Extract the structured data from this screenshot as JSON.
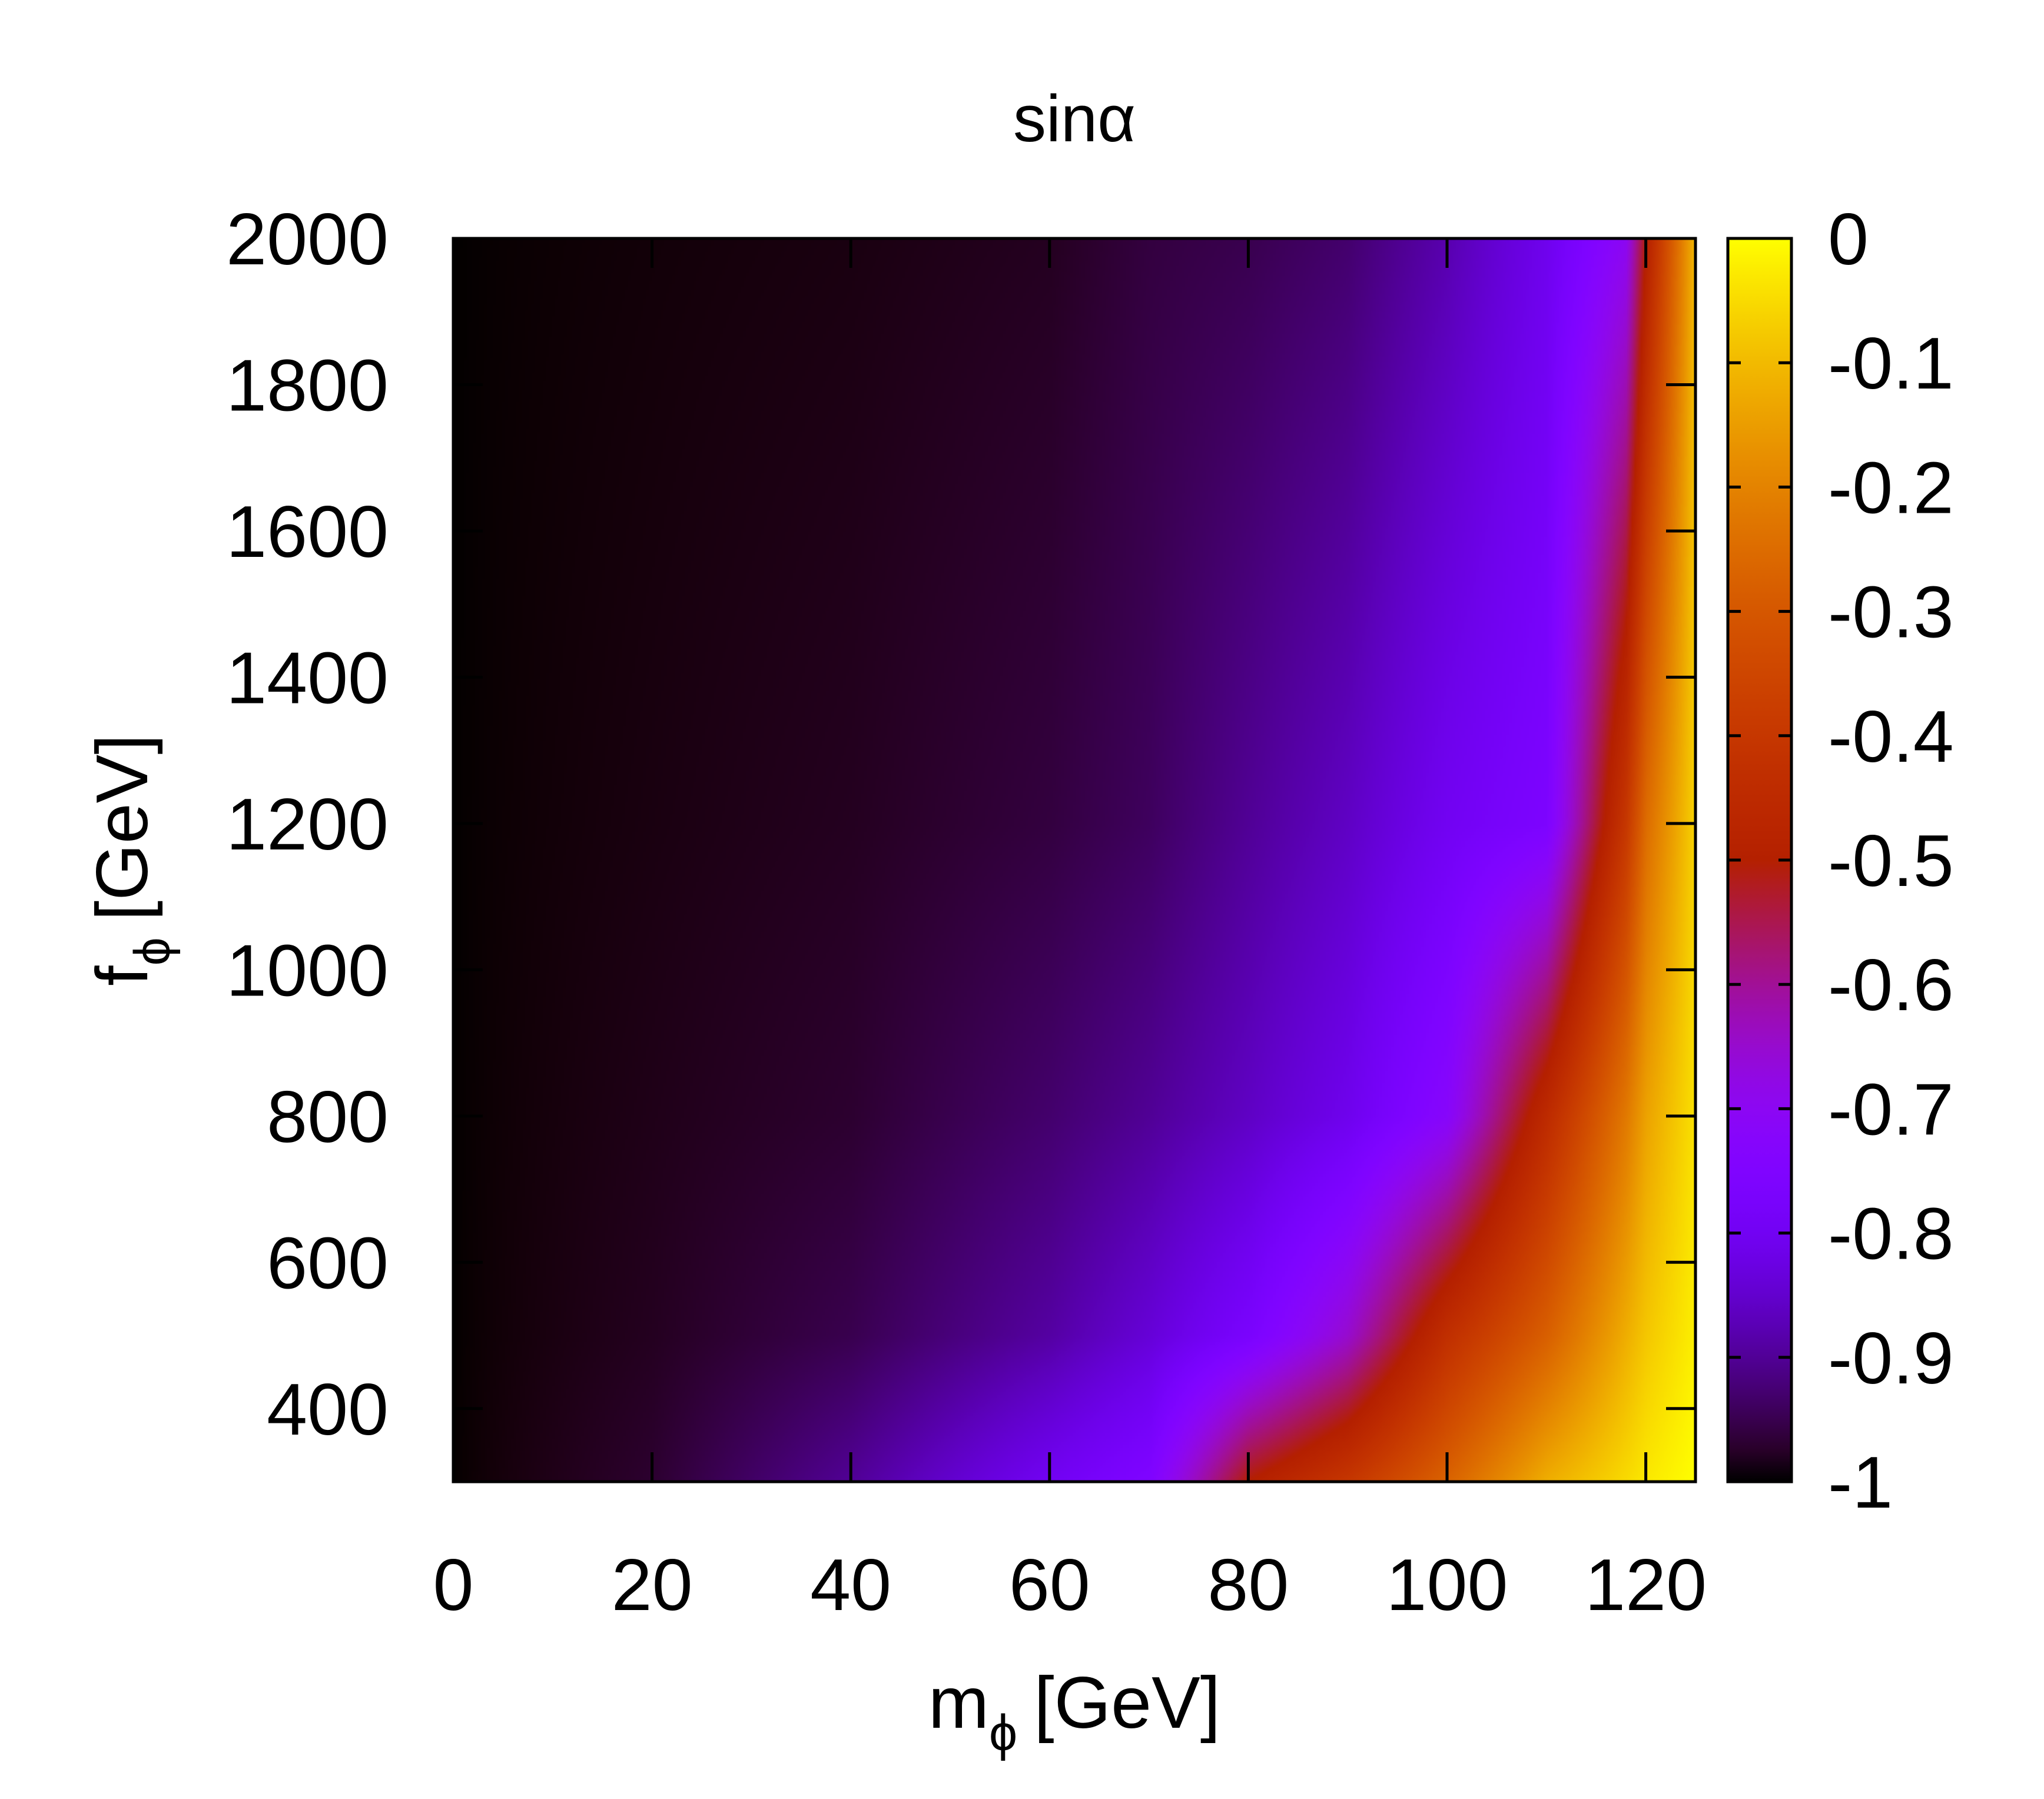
{
  "chart_data": {
    "type": "heatmap",
    "title": "sinα",
    "xlabel": {
      "main": "m",
      "sub": "ϕ",
      "unit": "[GeV]"
    },
    "ylabel": {
      "main": "f",
      "sub": "ϕ",
      "unit": "[GeV]"
    },
    "xlim": [
      0,
      125
    ],
    "ylim": [
      300,
      2000
    ],
    "x_ticks": [
      0,
      20,
      40,
      60,
      80,
      100,
      120
    ],
    "x_tick_labels": [
      "0",
      "20",
      "40",
      "60",
      "80",
      "100",
      "120"
    ],
    "y_ticks": [
      400,
      600,
      800,
      1000,
      1200,
      1400,
      1600,
      1800,
      2000
    ],
    "y_tick_labels": [
      "400",
      "600",
      "800",
      "1000",
      "1200",
      "1400",
      "1600",
      "1800",
      "2000"
    ],
    "colorbar": {
      "range": [
        -1,
        0
      ],
      "ticks": [
        0,
        -0.1,
        -0.2,
        -0.3,
        -0.4,
        -0.5,
        -0.6,
        -0.7,
        -0.8,
        -0.9,
        -1
      ],
      "tick_labels": [
        "0",
        "-0.1",
        "-0.2",
        "-0.3",
        "-0.4",
        "-0.5",
        "-0.6",
        "-0.7",
        "-0.8",
        "-0.9",
        "-1"
      ],
      "palette": "gnuplot (black-purple-red-orange-yellow)"
    },
    "value_grid": {
      "x": [
        0,
        20,
        40,
        60,
        70,
        80,
        90,
        100,
        110,
        118,
        120,
        125
      ],
      "y": [
        300,
        500,
        800,
        1200,
        2000
      ],
      "z": [
        [
          -1.0,
          -0.97,
          -0.9,
          -0.8,
          -0.75,
          -0.5,
          -0.4,
          -0.27,
          -0.12,
          -0.05,
          -0.03,
          0.0
        ],
        [
          -1.0,
          -0.98,
          -0.95,
          -0.89,
          -0.84,
          -0.77,
          -0.65,
          -0.43,
          -0.28,
          -0.12,
          -0.08,
          -0.02
        ],
        [
          -1.0,
          -0.985,
          -0.97,
          -0.93,
          -0.9,
          -0.86,
          -0.81,
          -0.72,
          -0.45,
          -0.22,
          -0.14,
          -0.04
        ],
        [
          -1.0,
          -0.99,
          -0.98,
          -0.96,
          -0.94,
          -0.9,
          -0.86,
          -0.8,
          -0.76,
          -0.4,
          -0.25,
          -0.06
        ],
        [
          -1.0,
          -0.995,
          -0.99,
          -0.98,
          -0.96,
          -0.95,
          -0.93,
          -0.88,
          -0.81,
          -0.7,
          -0.5,
          -0.1
        ]
      ]
    }
  }
}
